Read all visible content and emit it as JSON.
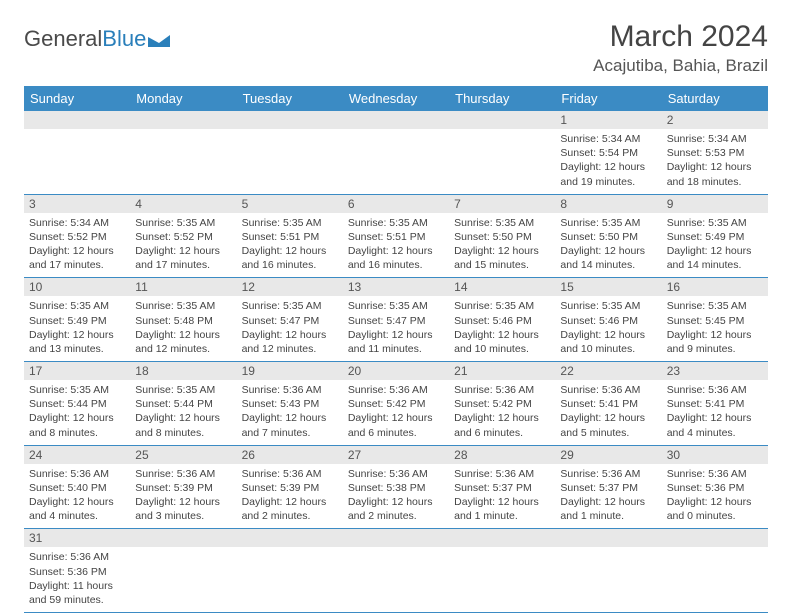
{
  "logo": {
    "part1": "General",
    "part2": "Blue"
  },
  "title": "March 2024",
  "location": "Acajutiba, Bahia, Brazil",
  "colors": {
    "header_bg": "#3b8bc4",
    "header_text": "#ffffff",
    "daynum_bg": "#e8e8e8",
    "row_border": "#3b8bc4",
    "text": "#444444",
    "logo_gray": "#4a4a4a",
    "logo_blue": "#2a7fba"
  },
  "daysOfWeek": [
    "Sunday",
    "Monday",
    "Tuesday",
    "Wednesday",
    "Thursday",
    "Friday",
    "Saturday"
  ],
  "weeks": [
    [
      null,
      null,
      null,
      null,
      null,
      {
        "n": "1",
        "sr": "5:34 AM",
        "ss": "5:54 PM",
        "dl": "12 hours and 19 minutes."
      },
      {
        "n": "2",
        "sr": "5:34 AM",
        "ss": "5:53 PM",
        "dl": "12 hours and 18 minutes."
      }
    ],
    [
      {
        "n": "3",
        "sr": "5:34 AM",
        "ss": "5:52 PM",
        "dl": "12 hours and 17 minutes."
      },
      {
        "n": "4",
        "sr": "5:35 AM",
        "ss": "5:52 PM",
        "dl": "12 hours and 17 minutes."
      },
      {
        "n": "5",
        "sr": "5:35 AM",
        "ss": "5:51 PM",
        "dl": "12 hours and 16 minutes."
      },
      {
        "n": "6",
        "sr": "5:35 AM",
        "ss": "5:51 PM",
        "dl": "12 hours and 16 minutes."
      },
      {
        "n": "7",
        "sr": "5:35 AM",
        "ss": "5:50 PM",
        "dl": "12 hours and 15 minutes."
      },
      {
        "n": "8",
        "sr": "5:35 AM",
        "ss": "5:50 PM",
        "dl": "12 hours and 14 minutes."
      },
      {
        "n": "9",
        "sr": "5:35 AM",
        "ss": "5:49 PM",
        "dl": "12 hours and 14 minutes."
      }
    ],
    [
      {
        "n": "10",
        "sr": "5:35 AM",
        "ss": "5:49 PM",
        "dl": "12 hours and 13 minutes."
      },
      {
        "n": "11",
        "sr": "5:35 AM",
        "ss": "5:48 PM",
        "dl": "12 hours and 12 minutes."
      },
      {
        "n": "12",
        "sr": "5:35 AM",
        "ss": "5:47 PM",
        "dl": "12 hours and 12 minutes."
      },
      {
        "n": "13",
        "sr": "5:35 AM",
        "ss": "5:47 PM",
        "dl": "12 hours and 11 minutes."
      },
      {
        "n": "14",
        "sr": "5:35 AM",
        "ss": "5:46 PM",
        "dl": "12 hours and 10 minutes."
      },
      {
        "n": "15",
        "sr": "5:35 AM",
        "ss": "5:46 PM",
        "dl": "12 hours and 10 minutes."
      },
      {
        "n": "16",
        "sr": "5:35 AM",
        "ss": "5:45 PM",
        "dl": "12 hours and 9 minutes."
      }
    ],
    [
      {
        "n": "17",
        "sr": "5:35 AM",
        "ss": "5:44 PM",
        "dl": "12 hours and 8 minutes."
      },
      {
        "n": "18",
        "sr": "5:35 AM",
        "ss": "5:44 PM",
        "dl": "12 hours and 8 minutes."
      },
      {
        "n": "19",
        "sr": "5:36 AM",
        "ss": "5:43 PM",
        "dl": "12 hours and 7 minutes."
      },
      {
        "n": "20",
        "sr": "5:36 AM",
        "ss": "5:42 PM",
        "dl": "12 hours and 6 minutes."
      },
      {
        "n": "21",
        "sr": "5:36 AM",
        "ss": "5:42 PM",
        "dl": "12 hours and 6 minutes."
      },
      {
        "n": "22",
        "sr": "5:36 AM",
        "ss": "5:41 PM",
        "dl": "12 hours and 5 minutes."
      },
      {
        "n": "23",
        "sr": "5:36 AM",
        "ss": "5:41 PM",
        "dl": "12 hours and 4 minutes."
      }
    ],
    [
      {
        "n": "24",
        "sr": "5:36 AM",
        "ss": "5:40 PM",
        "dl": "12 hours and 4 minutes."
      },
      {
        "n": "25",
        "sr": "5:36 AM",
        "ss": "5:39 PM",
        "dl": "12 hours and 3 minutes."
      },
      {
        "n": "26",
        "sr": "5:36 AM",
        "ss": "5:39 PM",
        "dl": "12 hours and 2 minutes."
      },
      {
        "n": "27",
        "sr": "5:36 AM",
        "ss": "5:38 PM",
        "dl": "12 hours and 2 minutes."
      },
      {
        "n": "28",
        "sr": "5:36 AM",
        "ss": "5:37 PM",
        "dl": "12 hours and 1 minute."
      },
      {
        "n": "29",
        "sr": "5:36 AM",
        "ss": "5:37 PM",
        "dl": "12 hours and 1 minute."
      },
      {
        "n": "30",
        "sr": "5:36 AM",
        "ss": "5:36 PM",
        "dl": "12 hours and 0 minutes."
      }
    ],
    [
      {
        "n": "31",
        "sr": "5:36 AM",
        "ss": "5:36 PM",
        "dl": "11 hours and 59 minutes."
      },
      null,
      null,
      null,
      null,
      null,
      null
    ]
  ],
  "labels": {
    "sunrise": "Sunrise:",
    "sunset": "Sunset:",
    "daylight": "Daylight:"
  }
}
